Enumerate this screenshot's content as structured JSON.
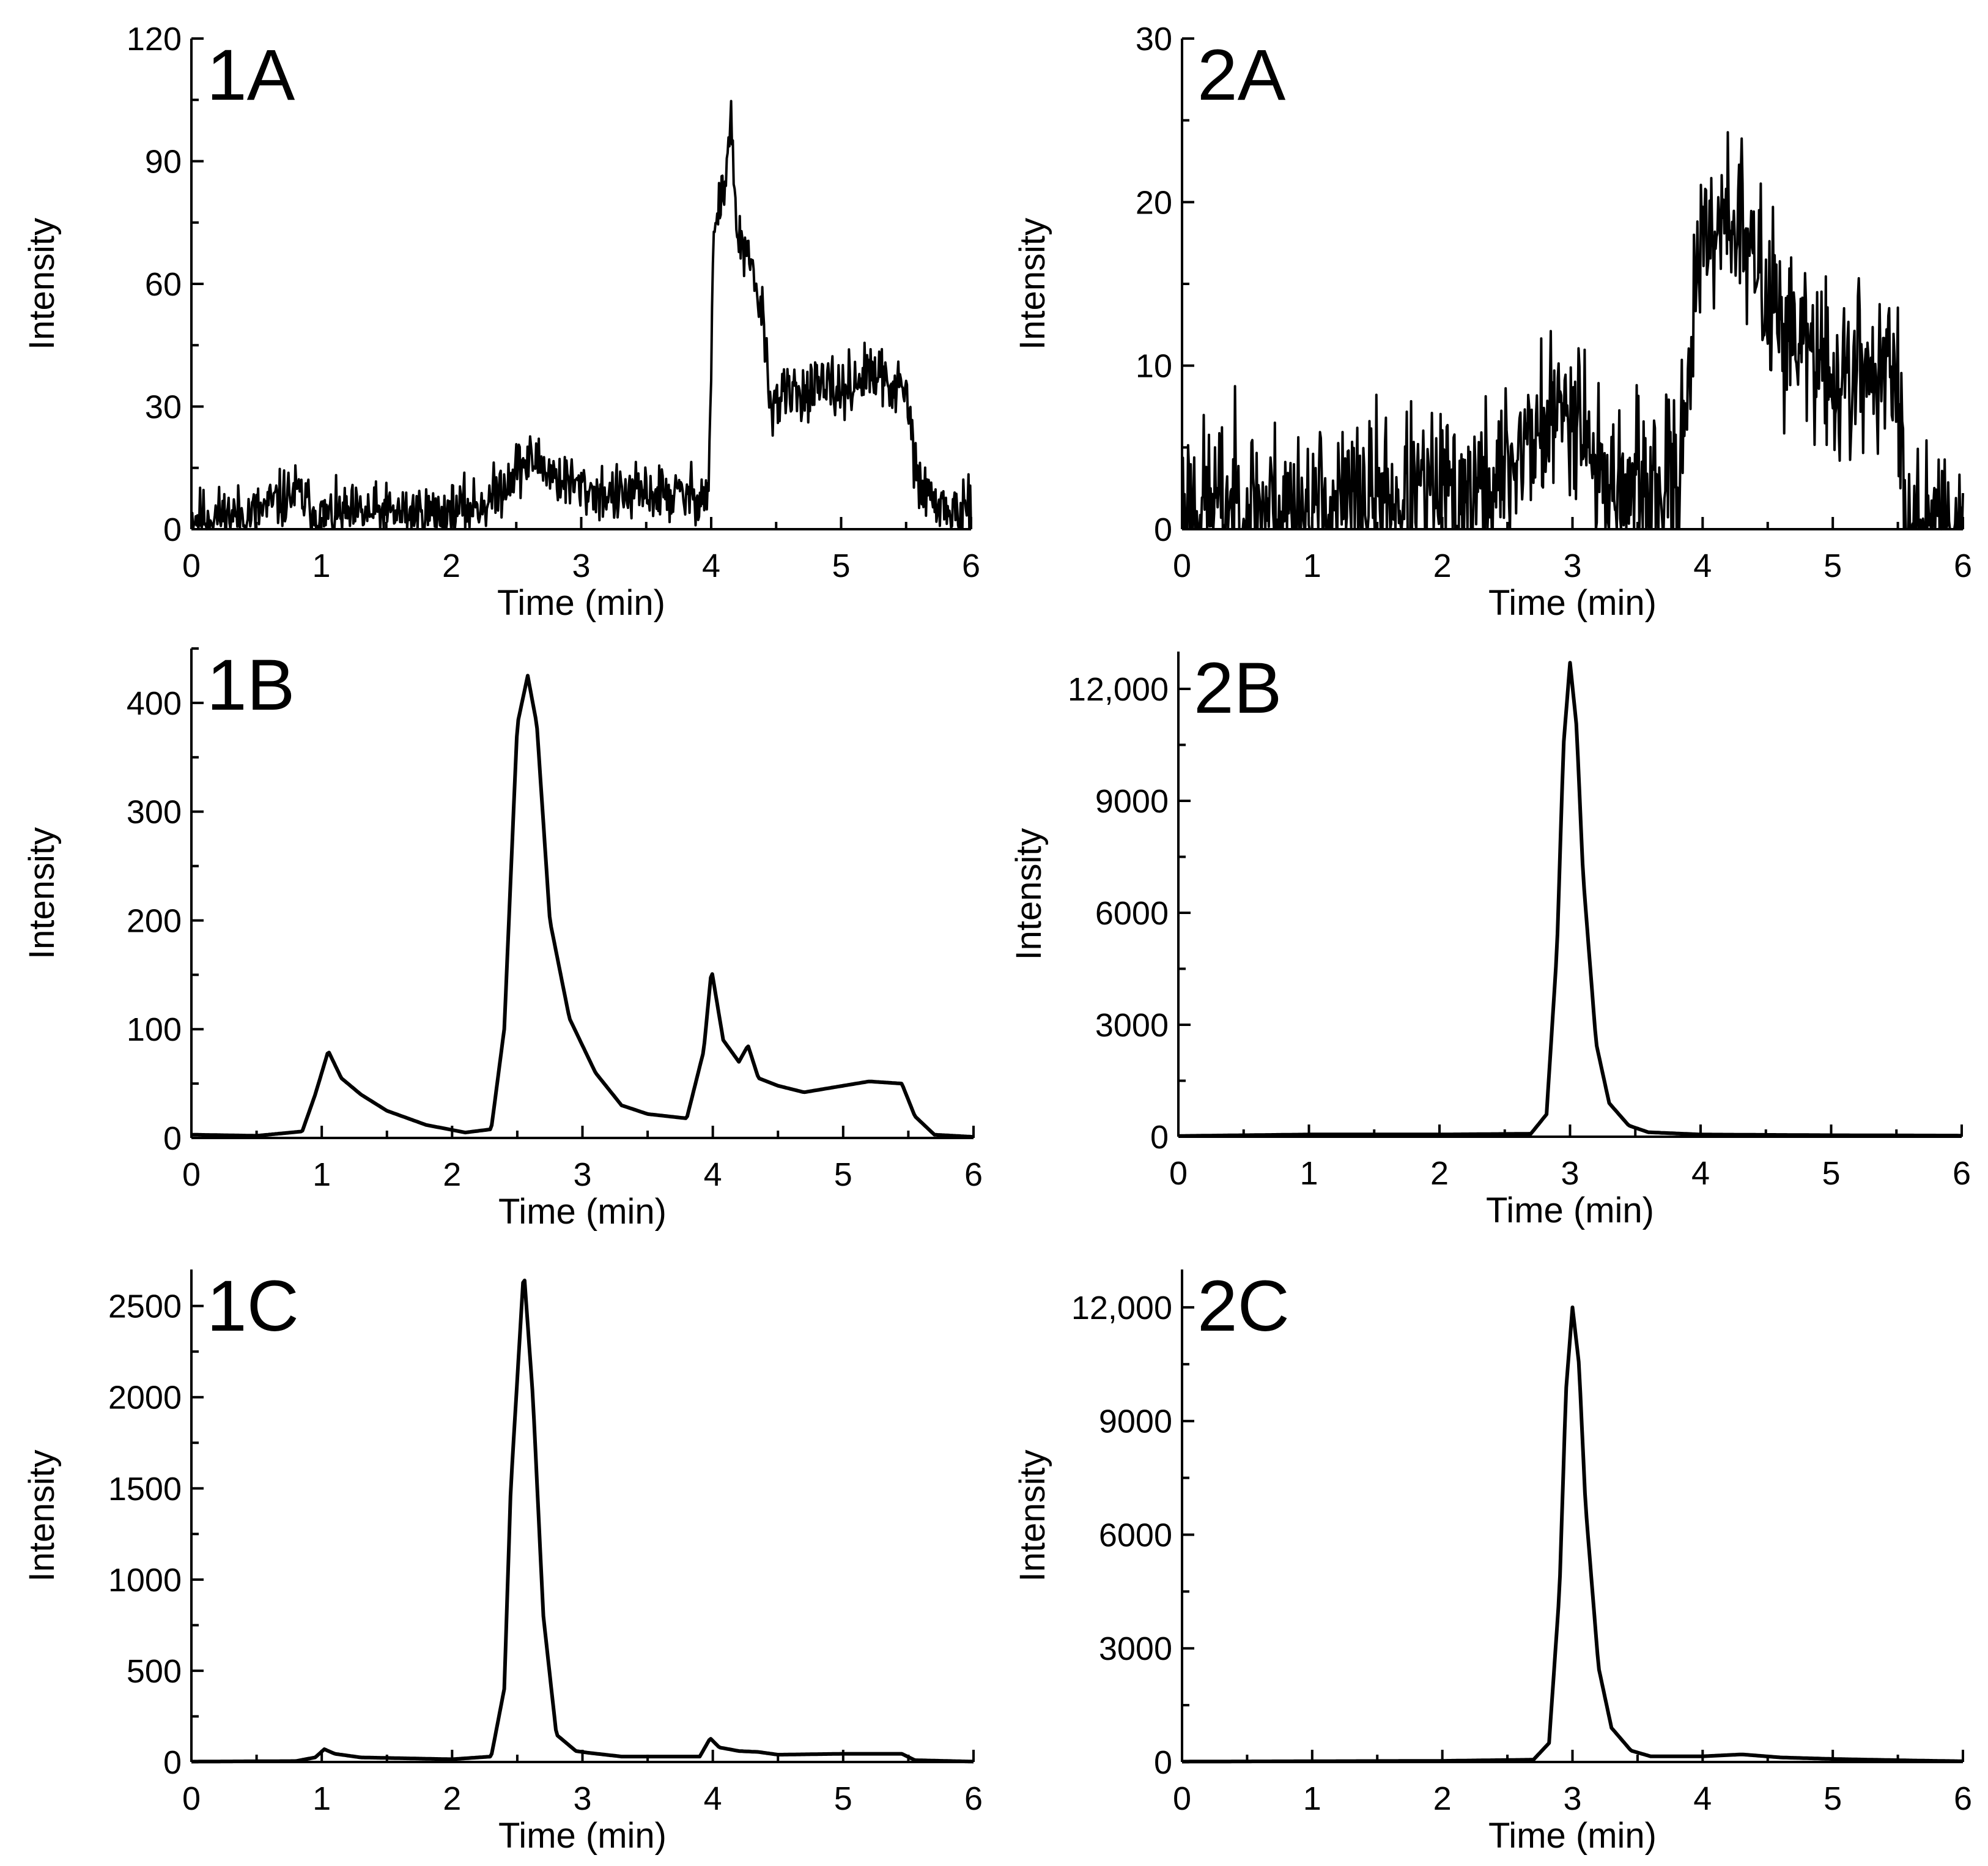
{
  "figure": {
    "line_color": "#000000",
    "background": "#ffffff"
  },
  "chart_data": [
    {
      "id": "1A",
      "type": "line",
      "panel_label": "1A",
      "xlabel": "Time (min)",
      "ylabel": "Intensity",
      "xlim": [
        0,
        6
      ],
      "ylim": [
        0,
        120
      ],
      "xticks": [
        0,
        1,
        2,
        3,
        4,
        5,
        6
      ],
      "xtick_labels": [
        "0",
        "1",
        "2",
        "3",
        "4",
        "5",
        "6"
      ],
      "yticks": [
        0,
        30,
        60,
        90,
        120
      ],
      "ytick_labels": [
        "0",
        "30",
        "60",
        "90",
        "120"
      ],
      "noise": 3.5,
      "seed": 11,
      "series": [
        {
          "name": "1A",
          "x": [
            0,
            0.5,
            0.8,
            1.0,
            1.5,
            2.0,
            2.3,
            2.5,
            2.65,
            2.8,
            3.0,
            3.3,
            3.5,
            3.8,
            3.98,
            4.02,
            4.1,
            4.15,
            4.2,
            4.3,
            4.4,
            4.45,
            4.7,
            5.0,
            5.2,
            5.35,
            5.5,
            5.6,
            5.8,
            6.0
          ],
          "y": [
            3,
            4,
            9,
            3,
            4,
            4,
            7,
            15,
            17,
            13,
            10,
            8,
            9,
            8,
            9,
            72,
            84,
            100,
            72,
            64,
            52,
            31,
            34,
            34,
            38,
            36,
            33,
            10,
            5,
            3
          ]
        }
      ]
    },
    {
      "id": "2A",
      "type": "line",
      "panel_label": "2A",
      "xlabel": "Time (min)",
      "ylabel": "Intensity",
      "xlim": [
        0,
        6
      ],
      "ylim": [
        0,
        30
      ],
      "xticks": [
        0,
        1,
        2,
        3,
        4,
        5,
        6
      ],
      "xtick_labels": [
        "0",
        "1",
        "2",
        "3",
        "4",
        "5",
        "6"
      ],
      "yticks": [
        0,
        10,
        20,
        30
      ],
      "ytick_labels": [
        "0",
        "10",
        "20",
        "30"
      ],
      "noise": 2.6,
      "seed": 23,
      "series": [
        {
          "name": "2A",
          "x": [
            0,
            0.5,
            1.0,
            1.5,
            2.0,
            2.4,
            2.6,
            2.9,
            3.05,
            3.2,
            3.5,
            3.8,
            3.95,
            4.1,
            4.2,
            4.4,
            4.6,
            4.8,
            5.0,
            5.3,
            5.5,
            5.55,
            5.8,
            6.0
          ],
          "y": [
            1.5,
            1.5,
            1.2,
            1.8,
            2,
            2.5,
            5,
            7,
            8,
            3,
            2,
            2.5,
            15,
            19,
            20,
            16,
            13,
            11,
            9,
            10,
            9,
            1.5,
            1,
            0.5
          ]
        }
      ]
    },
    {
      "id": "1B",
      "type": "line",
      "panel_label": "1B",
      "xlabel": "Time (min)",
      "ylabel": "Intensity",
      "xlim": [
        0,
        6
      ],
      "ylim": [
        0,
        450
      ],
      "xticks": [
        0,
        1,
        2,
        3,
        4,
        5,
        6
      ],
      "xtick_labels": [
        "0",
        "1",
        "2",
        "3",
        "4",
        "5",
        "6"
      ],
      "yticks": [
        0,
        100,
        200,
        300,
        400
      ],
      "ytick_labels": [
        "0",
        "100",
        "200",
        "300",
        "400"
      ],
      "noise": 0,
      "seed": 5,
      "series": [
        {
          "name": "1B",
          "x": [
            0,
            0.5,
            0.85,
            0.95,
            1.05,
            1.15,
            1.3,
            1.5,
            1.8,
            2.1,
            2.3,
            2.4,
            2.5,
            2.58,
            2.65,
            2.75,
            2.9,
            3.1,
            3.3,
            3.5,
            3.8,
            3.93,
            3.99,
            4.08,
            4.2,
            4.27,
            4.35,
            4.5,
            4.7,
            5.0,
            5.2,
            5.45,
            5.55,
            5.7,
            6.0
          ],
          "y": [
            3,
            2,
            6,
            40,
            80,
            55,
            40,
            25,
            12,
            5,
            8,
            100,
            380,
            425,
            380,
            200,
            110,
            60,
            30,
            22,
            18,
            80,
            155,
            90,
            70,
            85,
            55,
            48,
            42,
            48,
            52,
            50,
            20,
            3,
            1
          ]
        }
      ]
    },
    {
      "id": "2B",
      "type": "line",
      "panel_label": "2B",
      "xlabel": "Time (min)",
      "ylabel": "Intensity",
      "xlim": [
        0,
        6
      ],
      "ylim": [
        0,
        13000
      ],
      "xticks": [
        0,
        1,
        2,
        3,
        4,
        5,
        6
      ],
      "xtick_labels": [
        "0",
        "1",
        "2",
        "3",
        "4",
        "5",
        "6"
      ],
      "yticks": [
        0,
        3000,
        6000,
        9000,
        12000
      ],
      "ytick_labels": [
        "0",
        "3000",
        "6000",
        "9000",
        "12,000"
      ],
      "noise": 0,
      "seed": 7,
      "series": [
        {
          "name": "2B",
          "x": [
            0,
            1.0,
            2.0,
            2.7,
            2.82,
            2.9,
            2.95,
            3.0,
            3.05,
            3.1,
            3.2,
            3.3,
            3.45,
            3.6,
            4.0,
            5.0,
            6.0
          ],
          "y": [
            20,
            60,
            60,
            80,
            600,
            5000,
            10500,
            12700,
            11000,
            7000,
            2500,
            900,
            300,
            120,
            60,
            40,
            30
          ]
        }
      ]
    },
    {
      "id": "1C",
      "type": "line",
      "panel_label": "1C",
      "xlabel": "Time (min)",
      "ylabel": "Intensity",
      "xlim": [
        0,
        6
      ],
      "ylim": [
        0,
        2700
      ],
      "xticks": [
        0,
        1,
        2,
        3,
        4,
        5,
        6
      ],
      "xtick_labels": [
        "0",
        "1",
        "2",
        "3",
        "4",
        "5",
        "6"
      ],
      "yticks": [
        0,
        500,
        1000,
        1500,
        2000,
        2500
      ],
      "ytick_labels": [
        "0",
        "500",
        "1000",
        "1500",
        "2000",
        "2500"
      ],
      "noise": 0,
      "seed": 3,
      "series": [
        {
          "name": "1C",
          "x": [
            0,
            0.8,
            0.95,
            1.02,
            1.1,
            1.3,
            2.0,
            2.3,
            2.4,
            2.45,
            2.55,
            2.62,
            2.7,
            2.8,
            2.95,
            3.05,
            3.3,
            3.9,
            3.98,
            4.05,
            4.2,
            4.35,
            4.5,
            5.0,
            5.45,
            5.55,
            6.0
          ],
          "y": [
            2,
            5,
            25,
            70,
            45,
            25,
            15,
            30,
            400,
            1500,
            2700,
            2000,
            800,
            150,
            60,
            50,
            30,
            30,
            130,
            80,
            60,
            55,
            40,
            45,
            45,
            10,
            2
          ]
        }
      ]
    },
    {
      "id": "2C",
      "type": "line",
      "panel_label": "2C",
      "xlabel": "Time (min)",
      "ylabel": "Intensity",
      "xlim": [
        0,
        6
      ],
      "ylim": [
        0,
        13000
      ],
      "xticks": [
        0,
        1,
        2,
        3,
        4,
        5,
        6
      ],
      "xtick_labels": [
        "0",
        "1",
        "2",
        "3",
        "4",
        "5",
        "6"
      ],
      "yticks": [
        0,
        3000,
        6000,
        9000,
        12000
      ],
      "ytick_labels": [
        "0",
        "3000",
        "6000",
        "9000",
        "12,000"
      ],
      "noise": 0,
      "seed": 9,
      "series": [
        {
          "name": "2C",
          "x": [
            0,
            1.0,
            2.0,
            2.7,
            2.82,
            2.9,
            2.95,
            3.0,
            3.05,
            3.1,
            3.2,
            3.3,
            3.45,
            3.6,
            4.0,
            4.3,
            4.6,
            5.0,
            5.6,
            6.0
          ],
          "y": [
            10,
            20,
            30,
            60,
            500,
            4500,
            9800,
            12000,
            10500,
            6800,
            2500,
            900,
            300,
            150,
            150,
            200,
            120,
            80,
            40,
            20
          ]
        }
      ]
    }
  ]
}
